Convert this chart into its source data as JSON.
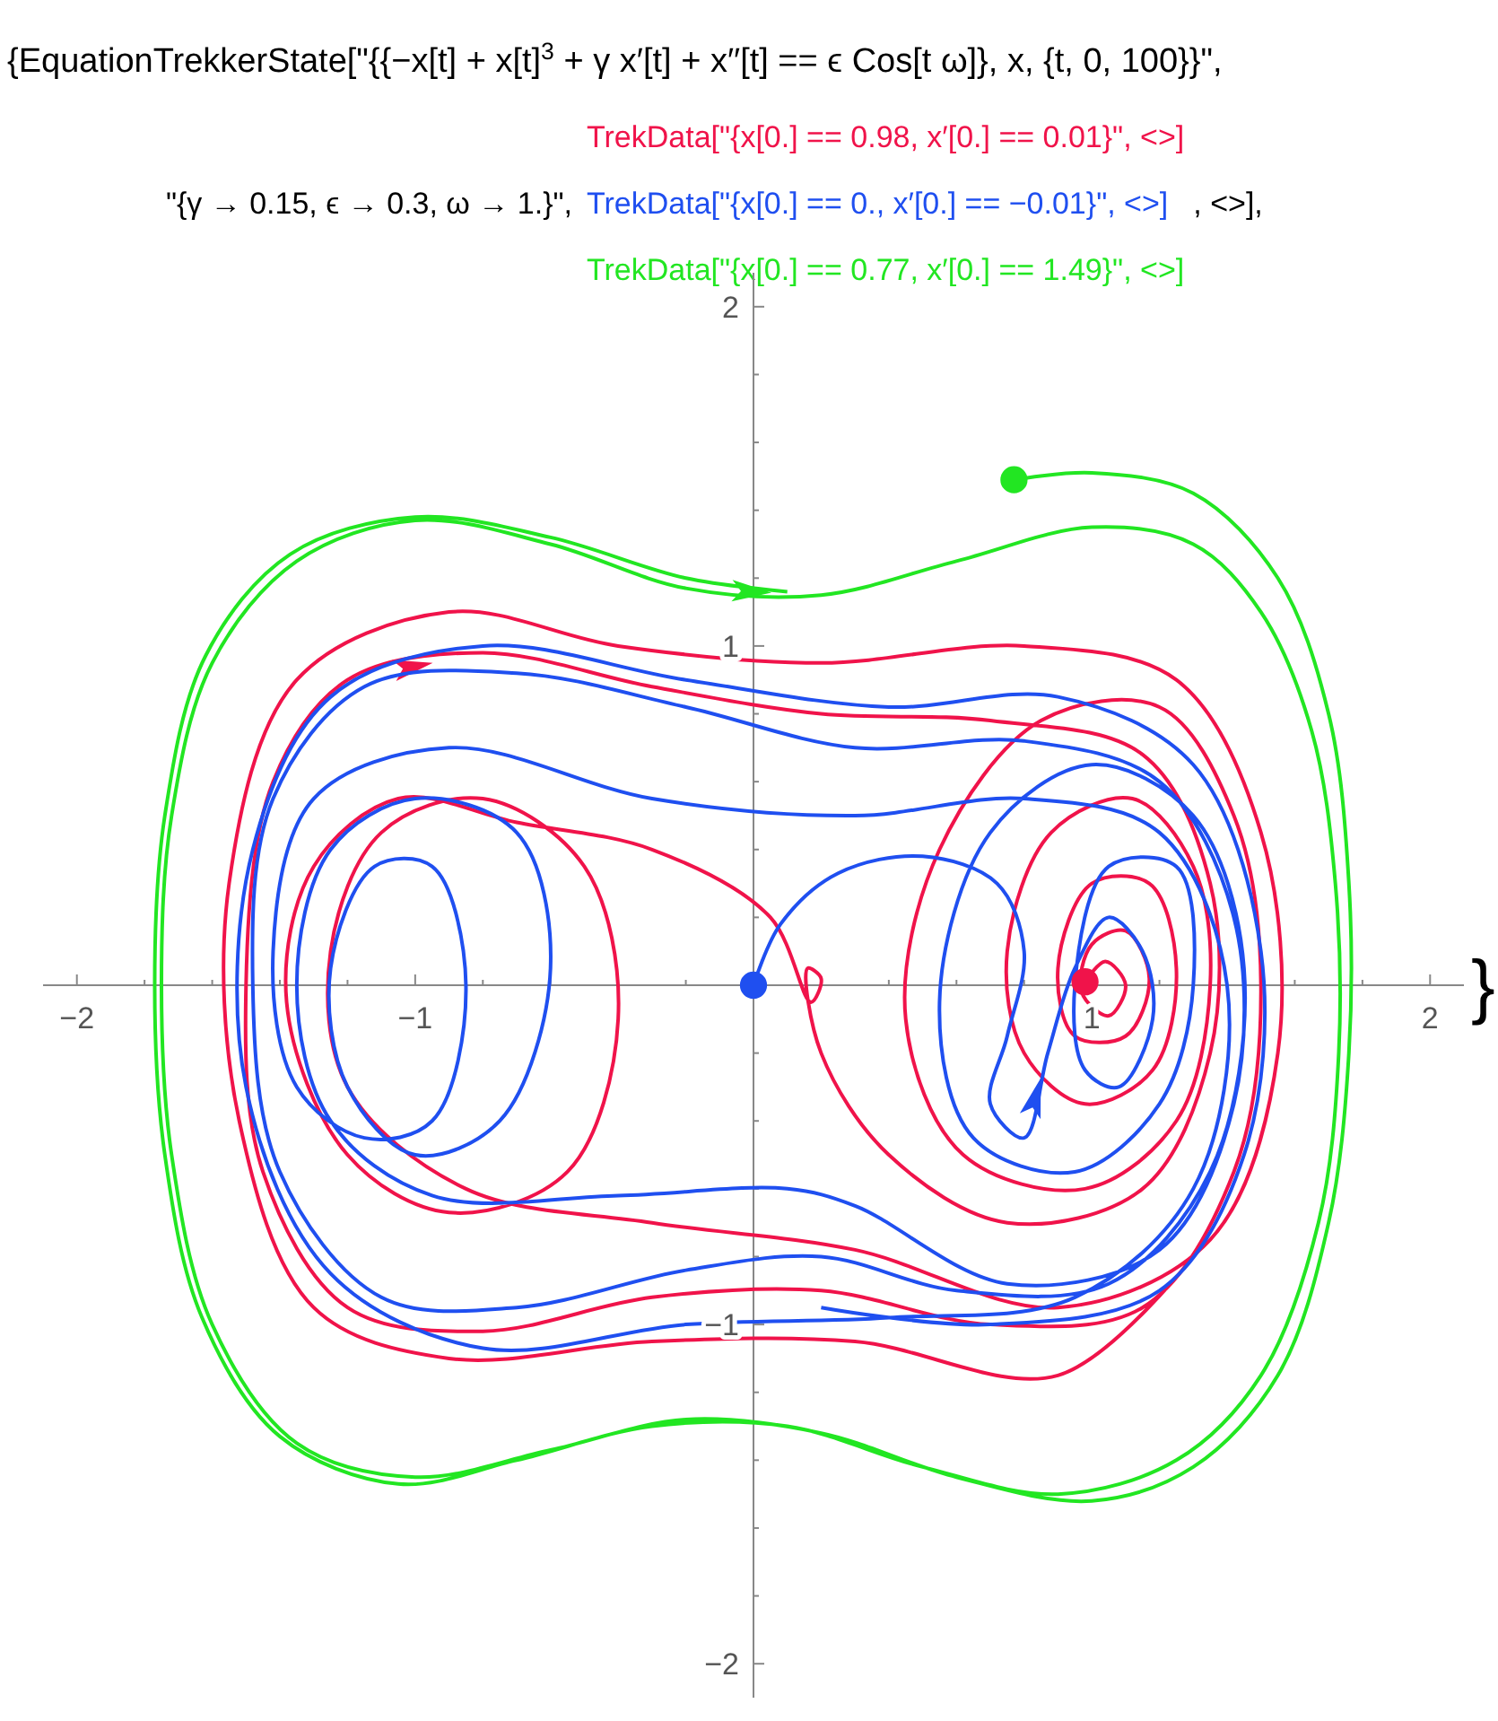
{
  "chart_data": {
    "type": "line",
    "title": "{EquationTrekkerState[\"{{−x[t] + x[t]$^{3}$ + γ x′[t] + x′′[t] == ϵ Cos[t ω]}, x, {t, 0, 100}}\",",
    "subtitle": "\"{γ → 0.15, ϵ → 0.3, ω → 1.}\",",
    "annotations": [
      ", <>],",
      "}"
    ],
    "legend": "top",
    "xlim": [
      -2.1,
      2.1
    ],
    "ylim": [
      -2.1,
      2.1
    ],
    "xticks": [
      {
        "value": -2,
        "label": "−2"
      },
      {
        "value": -1.8,
        "label": null
      },
      {
        "value": -1.6,
        "label": null
      },
      {
        "value": -1.4,
        "label": null
      },
      {
        "value": -1.2,
        "label": null
      },
      {
        "value": -1,
        "label": "−1"
      },
      {
        "value": -0.8,
        "label": null
      },
      {
        "value": -0.6,
        "label": null
      },
      {
        "value": -0.4,
        "label": null
      },
      {
        "value": -0.2,
        "label": null
      },
      {
        "value": 0.2,
        "label": null
      },
      {
        "value": 0.4,
        "label": null
      },
      {
        "value": 0.6,
        "label": null
      },
      {
        "value": 0.8,
        "label": null
      },
      1,
      {
        "value": 1.2,
        "label": null
      },
      {
        "value": 1.4,
        "label": null
      },
      {
        "value": 1.6,
        "label": null
      },
      {
        "value": 1.8,
        "label": null
      },
      2
    ],
    "yticks": [
      {
        "value": -2,
        "label": "−2"
      },
      {
        "value": -1.8,
        "label": null
      },
      {
        "value": -1.6,
        "label": null
      },
      {
        "value": -1.4,
        "label": null
      },
      {
        "value": -1.2,
        "label": null
      },
      {
        "value": -1,
        "label": "−1"
      },
      {
        "value": -0.8,
        "label": null
      },
      {
        "value": -0.6,
        "label": null
      },
      {
        "value": -0.4,
        "label": null
      },
      {
        "value": -0.2,
        "label": null
      },
      {
        "value": 0.2,
        "label": null
      },
      {
        "value": 0.4,
        "label": null
      },
      {
        "value": 0.6,
        "label": null
      },
      {
        "value": 0.8,
        "label": null
      },
      1,
      {
        "value": 1.2,
        "label": null
      },
      {
        "value": 1.4,
        "label": null
      },
      {
        "value": 1.6,
        "label": null
      },
      {
        "value": 1.8,
        "label": null
      },
      2
    ],
    "series": [
      {
        "name": "TrekData[\"{x[0.] == 0.98, x′[0.] == 0.01}\",  <>]",
        "color": "#f0134a",
        "x": [
          0.98,
          1.04,
          1.1,
          1.05,
          0.97,
          1.0,
          1.1,
          1.17,
          1.1,
          0.95,
          0.9,
          1.0,
          1.17,
          1.25,
          1.18,
          0.98,
          0.8,
          0.75,
          0.88,
          1.12,
          1.3,
          1.35,
          1.25,
          0.98,
          0.62,
          0.45,
          0.55,
          0.85,
          1.2,
          1.42,
          1.5,
          1.42,
          1.15,
          0.7,
          0.2,
          -0.3,
          -0.8,
          -1.2,
          -1.45,
          -1.5,
          -1.42,
          -1.2,
          -0.8,
          -0.3,
          0.2,
          0.7,
          1.15,
          1.35,
          1.35,
          1.15,
          0.75,
          0.4,
          0.2,
          0.16,
          0.2,
          0.17,
          0.05,
          -0.3,
          -0.7,
          -1.05,
          -1.3,
          -1.38,
          -1.2,
          -0.9,
          -0.55,
          -0.4,
          -0.5,
          -0.8,
          -1.1,
          -1.25,
          -1.2,
          -0.85,
          -0.3,
          0.3,
          0.9,
          1.35,
          1.55,
          1.5,
          1.25,
          0.8,
          0.2,
          -0.4,
          -0.9,
          -1.35,
          -1.55,
          -1.52,
          -1.3,
          -0.9,
          -0.3,
          0.3,
          0.9,
          1.3
        ],
        "values": [
          0.01,
          0.07,
          0.0,
          -0.09,
          -0.02,
          0.12,
          0.16,
          0.02,
          -0.15,
          -0.15,
          0.05,
          0.3,
          0.3,
          0.05,
          -0.25,
          -0.35,
          -0.2,
          0.1,
          0.45,
          0.55,
          0.35,
          0,
          -0.4,
          -0.6,
          -0.5,
          -0.1,
          0.4,
          0.78,
          0.82,
          0.5,
          0,
          -0.55,
          -0.95,
          -1.0,
          -0.9,
          -0.92,
          -1.02,
          -0.95,
          -0.55,
          0,
          0.6,
          0.9,
          0.98,
          0.88,
          0.8,
          0.78,
          0.68,
          0.3,
          -0.2,
          -0.6,
          -0.7,
          -0.5,
          -0.2,
          0.05,
          0.02,
          -0.05,
          0.2,
          0.4,
          0.48,
          0.55,
          0.35,
          -0.05,
          -0.5,
          -0.67,
          -0.55,
          -0.1,
          0.35,
          0.55,
          0.45,
          0.1,
          -0.3,
          -0.6,
          -0.7,
          -0.78,
          -0.95,
          -0.75,
          -0.2,
          0.45,
          0.9,
          1.0,
          0.95,
          1.0,
          1.1,
          0.9,
          0.3,
          -0.4,
          -0.95,
          -1.1,
          -1.05,
          -1.05,
          -1.15,
          -0.8
        ]
      },
      {
        "name": "TrekData[\"{x[0.] == 0., x′[0.] == −0.01}\",  <>]",
        "color": "#1f4ff0",
        "x": [
          0,
          0.08,
          0.25,
          0.5,
          0.72,
          0.8,
          0.75,
          0.7,
          0.8,
          0.87,
          0.95,
          1.05,
          1.15,
          1.18,
          1.08,
          0.98,
          0.95,
          1.05,
          1.25,
          1.3,
          1.2,
          0.95,
          0.65,
          0.55,
          0.7,
          1.0,
          1.3,
          1.45,
          1.35,
          1.05,
          0.6,
          0.2,
          -0.2,
          -0.7,
          -1.1,
          -1.4,
          -1.48,
          -1.42,
          -1.15,
          -0.7,
          -0.2,
          0.3,
          0.8,
          1.2,
          1.42,
          1.42,
          1.2,
          0.75,
          0.3,
          0.1,
          -0.4,
          -0.95,
          -1.25,
          -1.35,
          -1.25,
          -1.0,
          -0.7,
          -0.6,
          -0.75,
          -1.0,
          -1.2,
          -1.25,
          -1.12,
          -0.95,
          -0.85,
          -0.95,
          -1.15,
          -1.35,
          -1.42,
          -1.3,
          -0.9,
          -0.3,
          0.3,
          0.8,
          1.2,
          1.4,
          1.3,
          0.95,
          0.4,
          -0.2,
          -0.8,
          -1.25,
          -1.5,
          -1.48,
          -1.25,
          -0.8,
          -0.2,
          0.4,
          0.9,
          1.3,
          1.5,
          1.45,
          1.2,
          0.7,
          0.2
        ],
        "values": [
          0,
          0.18,
          0.33,
          0.38,
          0.3,
          0.1,
          -0.15,
          -0.35,
          -0.45,
          -0.2,
          0.05,
          0.2,
          0.1,
          -0.1,
          -0.3,
          -0.25,
          0,
          0.35,
          0.35,
          0,
          -0.35,
          -0.55,
          -0.45,
          -0.05,
          0.45,
          0.65,
          0.5,
          0.05,
          -0.55,
          -0.88,
          -0.9,
          -0.8,
          -0.84,
          -0.95,
          -0.92,
          -0.55,
          0,
          0.55,
          0.88,
          0.92,
          0.82,
          0.7,
          0.72,
          0.6,
          0.2,
          -0.35,
          -0.78,
          -0.88,
          -0.65,
          -0.6,
          -0.62,
          -0.62,
          -0.4,
          0,
          0.4,
          0.55,
          0.45,
          0.05,
          -0.4,
          -0.5,
          -0.3,
          0.05,
          0.35,
          0.35,
          0,
          -0.4,
          -0.45,
          -0.3,
          0.1,
          0.55,
          0.7,
          0.55,
          0.5,
          0.55,
          0.45,
          0,
          -0.6,
          -0.92,
          -0.98,
          -1.0,
          -1.07,
          -0.85,
          -0.3,
          0.4,
          0.85,
          1.0,
          0.9,
          0.82,
          0.85,
          0.65,
          0.1,
          -0.5,
          -0.9,
          -1.0,
          -0.95
        ]
      },
      {
        "name": "TrekData[\"{x[0.] == 0.77, x′[0.] == 1.49}\",  <>]",
        "color": "#22e622",
        "x": [
          0.77,
          1.0,
          1.3,
          1.55,
          1.7,
          1.76,
          1.76,
          1.7,
          1.55,
          1.3,
          1.0,
          0.6,
          0.2,
          -0.2,
          -0.6,
          -1.0,
          -1.35,
          -1.6,
          -1.72,
          -1.75,
          -1.72,
          -1.6,
          -1.35,
          -1.0,
          -0.6,
          -0.2,
          0.2,
          0.6,
          1.0,
          1.3,
          1.5,
          1.65,
          1.72,
          1.73,
          1.67,
          1.5,
          1.25,
          0.9,
          0.5,
          0.1,
          -0.3,
          -0.7,
          -1.05,
          -1.4,
          -1.63,
          -1.74,
          -1.77,
          -1.74,
          -1.62,
          -1.37,
          -1.0,
          -0.6,
          -0.2,
          0.1
        ],
        "values": [
          1.49,
          1.51,
          1.45,
          1.2,
          0.8,
          0.3,
          -0.2,
          -0.7,
          -1.15,
          -1.42,
          -1.52,
          -1.45,
          -1.32,
          -1.28,
          -1.37,
          -1.45,
          -1.35,
          -1.0,
          -0.5,
          0,
          0.5,
          0.95,
          1.25,
          1.37,
          1.3,
          1.17,
          1.15,
          1.25,
          1.35,
          1.3,
          1.1,
          0.75,
          0.3,
          -0.2,
          -0.7,
          -1.15,
          -1.4,
          -1.5,
          -1.42,
          -1.3,
          -1.3,
          -1.4,
          -1.47,
          -1.33,
          -0.98,
          -0.5,
          0,
          0.5,
          0.97,
          1.27,
          1.38,
          1.32,
          1.2,
          1.16
        ]
      },
      {
        "type": "scatter",
        "marker": "circle",
        "color": "#f0134a",
        "x": [
          0.98
        ],
        "values": [
          0.01
        ]
      },
      {
        "type": "scatter",
        "marker": "circle",
        "color": "#1f4ff0",
        "x": [
          0
        ],
        "values": [
          0
        ]
      },
      {
        "type": "scatter",
        "marker": "circle",
        "color": "#22e622",
        "x": [
          0.77
        ],
        "values": [
          1.49
        ]
      }
    ]
  }
}
